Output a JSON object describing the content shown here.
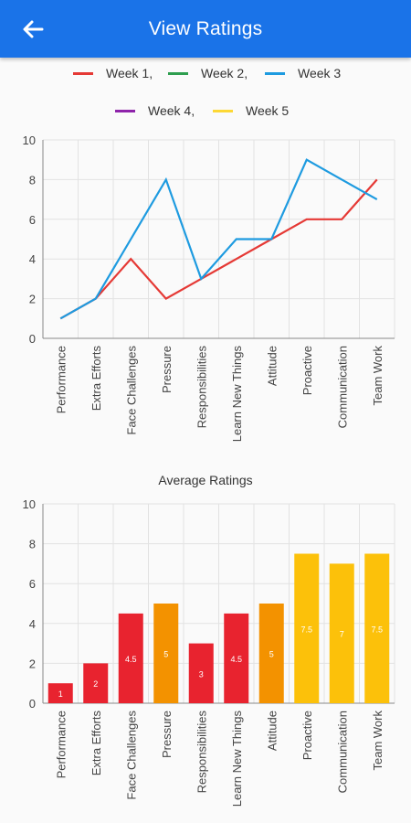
{
  "appbar": {
    "title": "View Ratings",
    "back_icon": "arrow-left-icon",
    "background": "#1a73e8"
  },
  "legend": [
    {
      "label": "Week 1,",
      "color": "#e53935"
    },
    {
      "label": "Week 2,",
      "color": "#2e9e4f"
    },
    {
      "label": "Week 3",
      "color": "#1e9be0"
    },
    {
      "label": "Week 4,",
      "color": "#8e24aa"
    },
    {
      "label": "Week 5",
      "color": "#fdd835"
    }
  ],
  "chart_data": [
    {
      "type": "line",
      "title": "",
      "categories": [
        "Performance",
        "Extra Efforts",
        "Face Challenges",
        "Pressure",
        "Responsibilities",
        "Learn New Things",
        "Attitude",
        "Proactive",
        "Communication",
        "Team Work"
      ],
      "ylim": [
        0,
        10
      ],
      "yticks": [
        "0",
        "2",
        "4",
        "6",
        "8",
        "10"
      ],
      "grid": true,
      "legend_position": "top",
      "series": [
        {
          "name": "Week 1,",
          "color": "#e53935",
          "values": [
            1,
            2,
            4,
            2,
            3,
            4,
            5,
            6,
            6,
            8
          ]
        },
        {
          "name": "Week 3",
          "color": "#1e9be0",
          "values": [
            1,
            2,
            5,
            8,
            3,
            5,
            5,
            9,
            8,
            7
          ]
        }
      ]
    },
    {
      "type": "bar",
      "title": "Average Ratings",
      "categories": [
        "Performance",
        "Extra Efforts",
        "Face Challenges",
        "Pressure",
        "Responsibilities",
        "Learn New Things",
        "Attitude",
        "Proactive",
        "Communication",
        "Team Work"
      ],
      "values": [
        1,
        2,
        4.5,
        5,
        3,
        4.5,
        5,
        7.5,
        7,
        7.5
      ],
      "labels": [
        "1",
        "2",
        "4.5",
        "5",
        "3",
        "4.5",
        "5",
        "7.5",
        "7",
        "7.5"
      ],
      "colors": [
        "#e8232f",
        "#e8232f",
        "#e8232f",
        "#f39200",
        "#e8232f",
        "#e8232f",
        "#f39200",
        "#fcc10a",
        "#fcc10a",
        "#fcc10a"
      ],
      "ylim": [
        0,
        10
      ],
      "yticks": [
        "0",
        "2",
        "4",
        "6",
        "8",
        "10"
      ],
      "grid": true
    }
  ]
}
